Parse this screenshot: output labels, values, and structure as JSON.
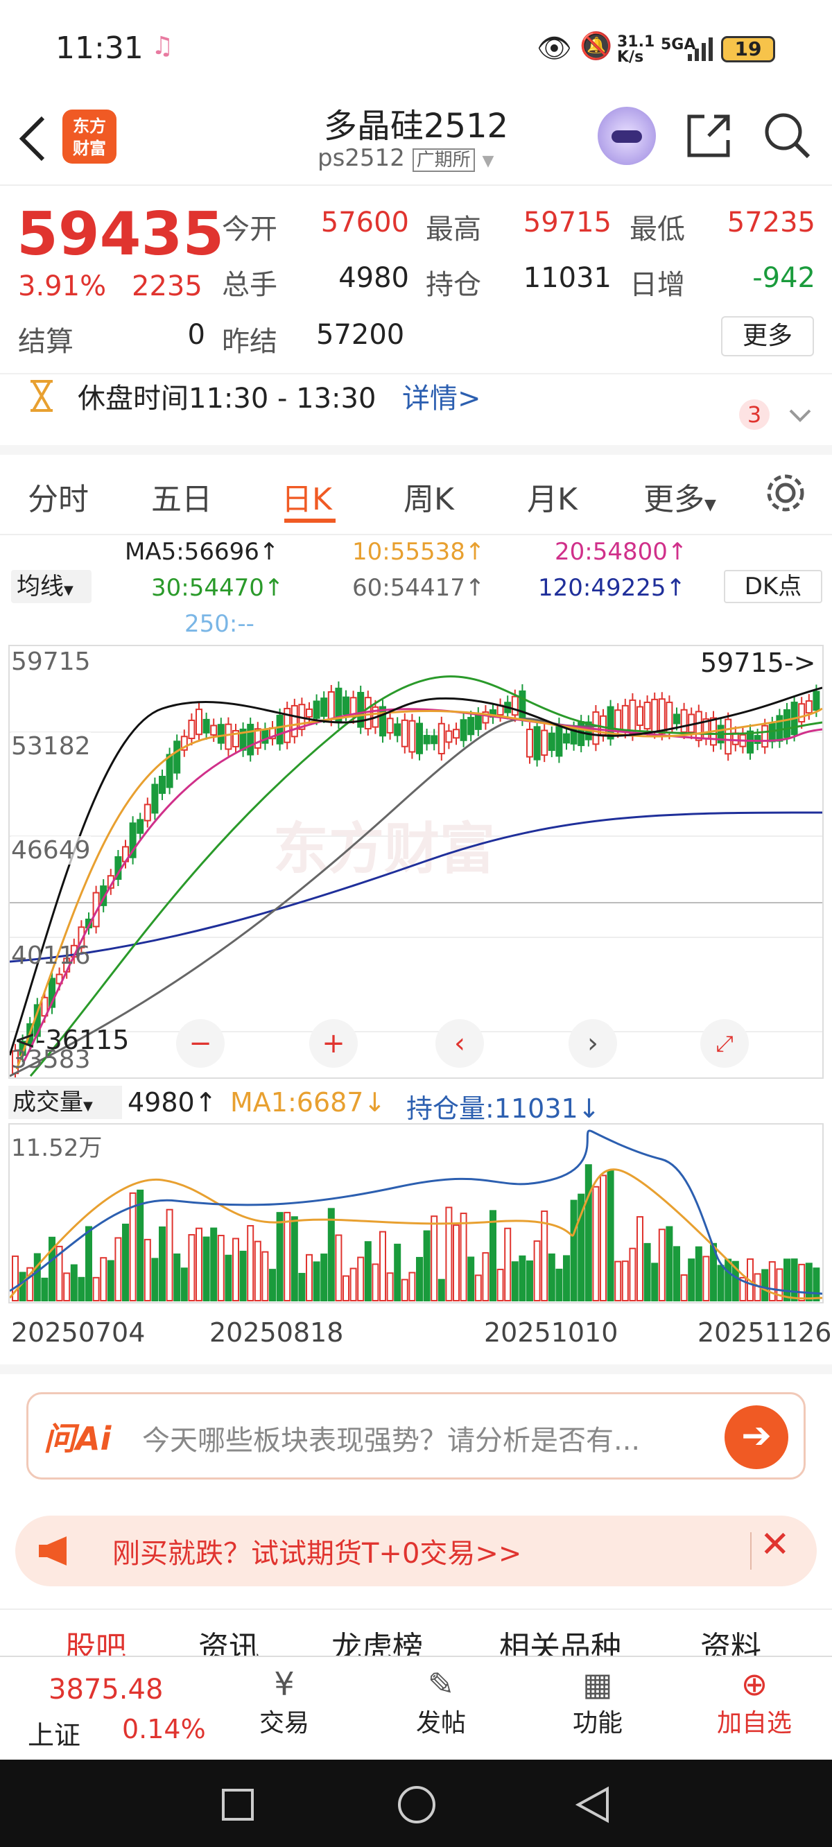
{
  "status": {
    "time": "11:31",
    "speed": "31.1",
    "speed_unit": "K/s",
    "network": "5GA",
    "battery": "19"
  },
  "header": {
    "logo_line1": "东方",
    "logo_line2": "财富",
    "title": "多晶硅2512",
    "code": "ps2512",
    "exchange": "广期所"
  },
  "quote": {
    "price": "59435",
    "pct": "3.91%",
    "change": "2235",
    "open_label": "今开",
    "open": "57600",
    "high_label": "最高",
    "high": "59715",
    "low_label": "最低",
    "low": "57235",
    "vol_label": "总手",
    "vol": "4980",
    "oi_label": "持仓",
    "oi": "11031",
    "inc_label": "日增",
    "inc": "-942",
    "settle_label": "结算",
    "settle": "0",
    "prev_label": "昨结",
    "prev": "57200",
    "more": "更多"
  },
  "notice": {
    "text": "休盘时间11:30 - 13:30",
    "link": "详情>",
    "badge": "3"
  },
  "tabs": [
    "分时",
    "五日",
    "日K",
    "周K",
    "月K",
    "更多"
  ],
  "ma": {
    "selector": "均线",
    "ma5": "MA5:56696↑",
    "ma10": "10:55538↑",
    "ma20": "20:54800↑",
    "ma30": "30:54470↑",
    "ma60": "60:54417↑",
    "ma120": "120:49225↑",
    "ma250": "250:--",
    "dk": "DK点"
  },
  "chart_data": {
    "type": "candlestick",
    "y_ticks": [
      "59715",
      "53182",
      "46649",
      "40116",
      "33583"
    ],
    "high_marker": "59715->",
    "low_marker": "<-36115",
    "ma_colors": {
      "ma5": "#111111",
      "ma10": "#e8a030",
      "ma20": "#d0308a",
      "ma30": "#2a9a2a",
      "ma60": "#666666",
      "ma120": "#1f2f9a"
    },
    "x_labels": [
      "20250704",
      "20250818",
      "20251010",
      "20251126"
    ]
  },
  "vol": {
    "selector": "成交量",
    "value": "4980↑",
    "ma1": "MA1:6687↓",
    "oi": "持仓量:11031↓",
    "ytick": "11.52万"
  },
  "ai": {
    "logo": "问Ai",
    "placeholder": "今天哪些板块表现强势？请分析是否有..."
  },
  "promo": {
    "text": "刚买就跌？试试期货T+0交易>>"
  },
  "subtabs": [
    "股吧",
    "资讯",
    "龙虎榜",
    "相关品种",
    "资料"
  ],
  "bottomnav": {
    "index_value": "3875.48",
    "index_name": "上证",
    "index_pct": "0.14%",
    "trade": "交易",
    "post": "发帖",
    "func": "功能",
    "add": "加自选"
  },
  "colors": {
    "up": "#e0342f",
    "down": "#1a9b3c",
    "accent": "#f05a24"
  }
}
